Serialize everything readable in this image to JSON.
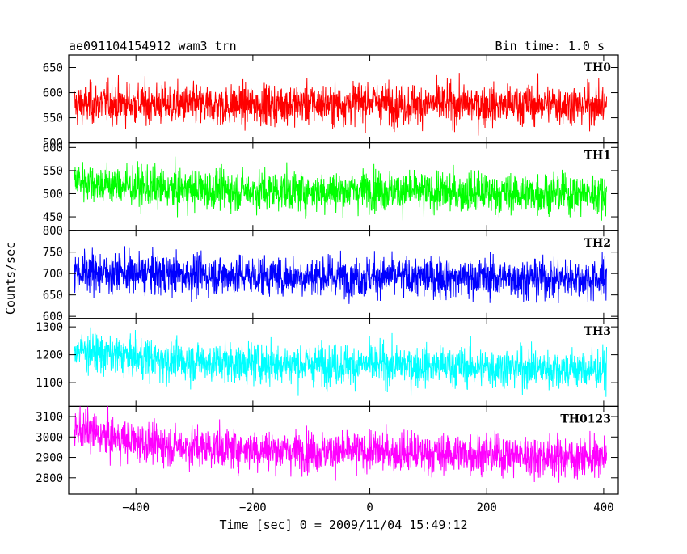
{
  "header": {
    "title": "ae091104154912_wam3_trn",
    "bin_time": "Bin time: 1.0 s"
  },
  "chart_data": {
    "type": "line",
    "title": "ae091104154912_wam3_trn",
    "subtitle": "Bin time: 1.0 s",
    "xlabel": "Time [sec] 0 = 2009/11/04 15:49:12",
    "ylabel": "Counts/sec",
    "xlim": [
      -515,
      425
    ],
    "x_range": [
      -505,
      405
    ],
    "x_ticks": [
      -400,
      -200,
      0,
      200,
      400
    ],
    "x_tick_labels": [
      "−400",
      "−200",
      "0",
      "200",
      "400"
    ],
    "grid": false,
    "panels": [
      {
        "name": "TH0",
        "color": "#ff0000",
        "ylim": [
          500,
          675
        ],
        "y_ticks": [
          500,
          550,
          600,
          650
        ],
        "y_tick_labels": [
          "500",
          "550",
          "600",
          "650"
        ],
        "series": [
          {
            "name": "TH0",
            "x": [
              -500,
              -450,
              -400,
              -350,
              -300,
              -250,
              -200,
              -150,
              -100,
              -50,
              0,
              50,
              100,
              150,
              200,
              250,
              300,
              350,
              400
            ],
            "y": [
              575,
              580,
              578,
              576,
              575,
              574,
              576,
              577,
              578,
              576,
              585,
              575,
              578,
              576,
              575,
              576,
              578,
              575,
              576
            ]
          }
        ]
      },
      {
        "name": "TH1",
        "color": "#00ff00",
        "ylim": [
          420,
          610
        ],
        "y_ticks": [
          450,
          500,
          550,
          600
        ],
        "y_tick_labels": [
          "450",
          "500",
          "550",
          "600"
        ],
        "series": [
          {
            "name": "TH1",
            "x": [
              -500,
              -450,
              -400,
              -350,
              -300,
              -250,
              -200,
              -150,
              -100,
              -50,
              0,
              50,
              100,
              150,
              200,
              250,
              300,
              350,
              400
            ],
            "y": [
              530,
              520,
              515,
              510,
              510,
              508,
              507,
              506,
              505,
              505,
              510,
              505,
              503,
              502,
              502,
              500,
              500,
              500,
              498
            ]
          }
        ]
      },
      {
        "name": "TH2",
        "color": "#0000ff",
        "ylim": [
          595,
          800
        ],
        "y_ticks": [
          600,
          650,
          700,
          750,
          800
        ],
        "y_tick_labels": [
          "600",
          "650",
          "700",
          "750",
          "800"
        ],
        "series": [
          {
            "name": "TH2",
            "x": [
              -500,
              -450,
              -400,
              -350,
              -300,
              -250,
              -200,
              -150,
              -100,
              -50,
              0,
              50,
              100,
              150,
              200,
              250,
              300,
              350,
              400
            ],
            "y": [
              705,
              702,
              700,
              698,
              697,
              696,
              695,
              694,
              694,
              693,
              693,
              692,
              691,
              690,
              690,
              689,
              688,
              688,
              687
            ]
          }
        ]
      },
      {
        "name": "TH3",
        "color": "#00ffff",
        "ylim": [
          1015,
          1330
        ],
        "y_ticks": [
          1100,
          1200,
          1300
        ],
        "y_tick_labels": [
          "1100",
          "1200",
          "1300"
        ],
        "series": [
          {
            "name": "TH3",
            "x": [
              -500,
              -450,
              -400,
              -350,
              -300,
              -250,
              -200,
              -150,
              -100,
              -50,
              0,
              50,
              100,
              150,
              200,
              250,
              300,
              350,
              400
            ],
            "y": [
              1220,
              1200,
              1190,
              1180,
              1175,
              1172,
              1170,
              1168,
              1166,
              1165,
              1165,
              1163,
              1160,
              1158,
              1155,
              1152,
              1150,
              1148,
              1145
            ]
          }
        ]
      },
      {
        "name": "TH0123",
        "color": "#ff00ff",
        "ylim": [
          2720,
          3150
        ],
        "y_ticks": [
          2800,
          2900,
          3000,
          3100
        ],
        "y_tick_labels": [
          "2800",
          "2900",
          "3000",
          "3100"
        ],
        "series": [
          {
            "name": "TH0123",
            "x": [
              -500,
              -450,
              -400,
              -350,
              -300,
              -250,
              -200,
              -150,
              -100,
              -50,
              0,
              50,
              100,
              150,
              200,
              250,
              300,
              350,
              400
            ],
            "y": [
              3040,
              3000,
              2975,
              2960,
              2950,
              2945,
              2940,
              2935,
              2930,
              2925,
              2930,
              2925,
              2920,
              2918,
              2915,
              2910,
              2905,
              2900,
              2895
            ]
          }
        ]
      }
    ]
  }
}
